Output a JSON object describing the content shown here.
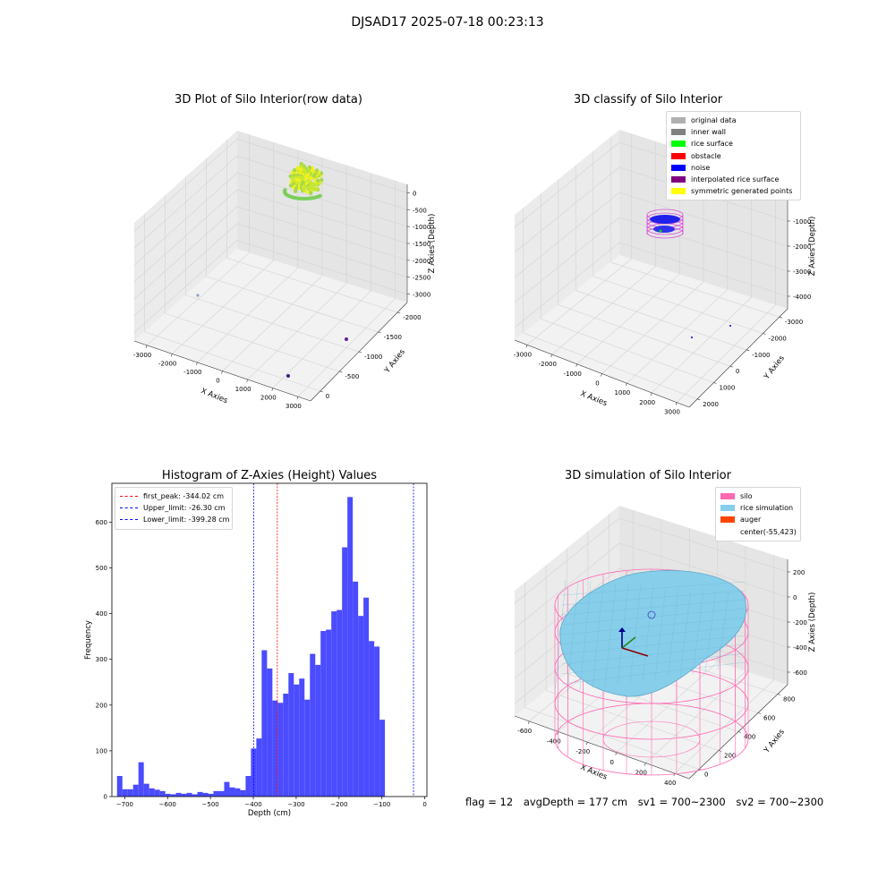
{
  "suptitle": "DJSAD17 2025-07-18 00:23:13",
  "panels": {
    "raw": {
      "title": "3D Plot of Silo Interior(row data)",
      "xlabel": "X Axies",
      "ylabel": "Y Axies",
      "zlabel": "Z Axies (Depth)",
      "xticks": [
        "-3000",
        "-2000",
        "-1000",
        "0",
        "1000",
        "2000",
        "3000"
      ],
      "yticks": [
        "0",
        "-500",
        "-1000",
        "-1500",
        "-2000"
      ],
      "zticks": [
        "0",
        "-500",
        "-1000",
        "-1500",
        "-2000",
        "-2500",
        "-3000"
      ]
    },
    "classify": {
      "title": "3D classify of Silo Interior",
      "xlabel": "X Axies",
      "ylabel": "Y Axies",
      "zlabel": "Z Axies (Depth)",
      "xticks": [
        "-3000",
        "-2000",
        "-1000",
        "0",
        "1000",
        "2000",
        "3000"
      ],
      "yticks": [
        "2000",
        "1000",
        "0",
        "-1000",
        "-2000",
        "-3000"
      ],
      "zticks": [
        "0",
        "-1000",
        "-2000",
        "-3000",
        "-4000"
      ],
      "legend": [
        {
          "label": "original data",
          "color": "#b0b0b0"
        },
        {
          "label": "inner wall",
          "color": "#808080"
        },
        {
          "label": "rice surface",
          "color": "#00ff00"
        },
        {
          "label": "obstacle",
          "color": "#ff0000"
        },
        {
          "label": "noise",
          "color": "#0000ff"
        },
        {
          "label": "interpolated rice surface",
          "color": "#800080"
        },
        {
          "label": "symmetric generated points",
          "color": "#ffff00"
        }
      ]
    },
    "histogram": {
      "title": "Histogram of Z-Axies (Height) Values",
      "legend": [
        {
          "label": "first_peak: -344.02 cm",
          "color": "#ff0000"
        },
        {
          "label": "Upper_limit: -26.30 cm",
          "color": "#0000ff"
        },
        {
          "label": "Lower_limit: -399.28 cm",
          "color": "#0000ff"
        }
      ]
    },
    "simulation": {
      "title": "3D simulation of Silo Interior",
      "xlabel": "X Axies",
      "ylabel": "Y Axies",
      "zlabel": "Z Axies (Depth)",
      "xticks": [
        "-600",
        "-400",
        "-200",
        "0",
        "200",
        "400"
      ],
      "yticks": [
        "0",
        "200",
        "400",
        "600",
        "800"
      ],
      "zticks": [
        "200",
        "0",
        "-200",
        "-400",
        "-600"
      ],
      "legend": [
        {
          "label": "silo",
          "color": "#ff69b4"
        },
        {
          "label": "rice simulation",
          "color": "#87ceeb"
        },
        {
          "label": "auger",
          "color": "#ff4500"
        },
        {
          "label": "center(-55,423)",
          "color": ""
        }
      ]
    }
  },
  "chart_data": {
    "type": "bar",
    "title": "Histogram of Z-Axies (Height) Values",
    "xlabel": "Depth (cm)",
    "ylabel": "Frequency",
    "xlim": [
      -730,
      5
    ],
    "ylim": [
      0,
      685
    ],
    "xticks": [
      -700,
      -600,
      -500,
      -400,
      -300,
      -200,
      -100,
      0
    ],
    "yticks": [
      0,
      100,
      200,
      300,
      400,
      500,
      600
    ],
    "bin_start": -718,
    "bin_width": 12.5,
    "values": [
      45,
      16,
      16,
      26,
      75,
      28,
      18,
      15,
      12,
      6,
      5,
      8,
      6,
      8,
      5,
      10,
      8,
      6,
      12,
      12,
      32,
      20,
      18,
      14,
      45,
      105,
      127,
      320,
      280,
      210,
      205,
      225,
      270,
      245,
      258,
      212,
      312,
      288,
      362,
      365,
      405,
      408,
      545,
      655,
      470,
      395,
      435,
      340,
      328,
      168
    ],
    "vlines": [
      {
        "x": -344.02,
        "color": "#ff0000",
        "name": "first_peak"
      },
      {
        "x": -26.3,
        "color": "#0000ff",
        "name": "Upper_limit"
      },
      {
        "x": -399.28,
        "color": "#0000ff",
        "name": "Lower_limit"
      }
    ],
    "bar_color": "#4b4bff"
  },
  "footer": {
    "flag": "flag = 12",
    "avg": "avgDepth = 177 cm",
    "sv1": "sv1 = 700~2300",
    "sv2": "sv2 = 700~2300"
  }
}
